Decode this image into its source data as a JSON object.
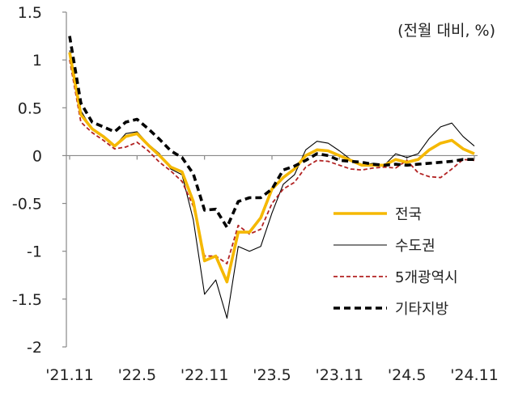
{
  "chart_data": {
    "type": "line",
    "title": "",
    "unit_note": "(전월 대비, %)",
    "xlabel": "",
    "ylabel": "",
    "ylim": [
      -2,
      1.5
    ],
    "y_ticks": [
      1.5,
      1,
      0.5,
      0,
      -0.5,
      -1,
      -1.5,
      -2
    ],
    "y_tick_labels": [
      "1.5",
      "1",
      "0.5",
      "0",
      "-0.5",
      "-1",
      "-1.5",
      "-2"
    ],
    "x_tick_labels": [
      "'21.11",
      "'22.5",
      "'22.11",
      "'23.5",
      "'23.11",
      "'24.5",
      "'24.11"
    ],
    "x_tick_index": [
      0,
      6,
      12,
      18,
      24,
      30,
      36
    ],
    "grid": false,
    "legend_position": "right",
    "months": [
      "'21.11",
      "'21.12",
      "'22.1",
      "'22.2",
      "'22.3",
      "'22.4",
      "'22.5",
      "'22.6",
      "'22.7",
      "'22.8",
      "'22.9",
      "'22.10",
      "'22.11",
      "'22.12",
      "'23.1",
      "'23.2",
      "'23.3",
      "'23.4",
      "'23.5",
      "'23.6",
      "'23.7",
      "'23.8",
      "'23.9",
      "'23.10",
      "'23.11",
      "'23.12",
      "'24.1",
      "'24.2",
      "'24.3",
      "'24.4",
      "'24.5",
      "'24.6",
      "'24.7",
      "'24.8",
      "'24.9",
      "'24.10",
      "'24.11"
    ],
    "series": [
      {
        "name": "전국",
        "color": "#f5b800",
        "style": "solid-thick",
        "values": [
          1.08,
          0.43,
          0.28,
          0.2,
          0.1,
          0.2,
          0.23,
          0.11,
          0.0,
          -0.12,
          -0.17,
          -0.48,
          -1.1,
          -1.05,
          -1.32,
          -0.8,
          -0.8,
          -0.65,
          -0.35,
          -0.23,
          -0.14,
          0.0,
          0.06,
          0.05,
          0.0,
          -0.05,
          -0.1,
          -0.1,
          -0.1,
          -0.04,
          -0.07,
          -0.04,
          0.06,
          0.13,
          0.16,
          0.07,
          0.02
        ]
      },
      {
        "name": "수도권",
        "color": "#000000",
        "style": "solid-thin",
        "values": [
          1.1,
          0.47,
          0.27,
          0.19,
          0.1,
          0.23,
          0.25,
          0.12,
          0.02,
          -0.14,
          -0.2,
          -0.67,
          -1.45,
          -1.3,
          -1.7,
          -0.95,
          -1.0,
          -0.95,
          -0.6,
          -0.3,
          -0.2,
          0.06,
          0.15,
          0.13,
          0.05,
          -0.04,
          -0.1,
          -0.08,
          -0.1,
          0.02,
          -0.02,
          0.02,
          0.18,
          0.3,
          0.34,
          0.2,
          0.1
        ]
      },
      {
        "name": "5개광역시",
        "color": "#b22222",
        "style": "dashed",
        "values": [
          1.0,
          0.35,
          0.24,
          0.16,
          0.07,
          0.09,
          0.14,
          0.05,
          -0.07,
          -0.16,
          -0.27,
          -0.53,
          -1.05,
          -1.05,
          -1.13,
          -0.73,
          -0.82,
          -0.77,
          -0.5,
          -0.35,
          -0.28,
          -0.12,
          -0.05,
          -0.06,
          -0.1,
          -0.14,
          -0.15,
          -0.13,
          -0.12,
          -0.13,
          -0.05,
          -0.18,
          -0.22,
          -0.23,
          -0.14,
          -0.04,
          -0.05
        ]
      },
      {
        "name": "기타지방",
        "color": "#000000",
        "style": "dashed-thick",
        "values": [
          1.25,
          0.55,
          0.35,
          0.3,
          0.25,
          0.35,
          0.38,
          0.28,
          0.17,
          0.05,
          -0.02,
          -0.19,
          -0.57,
          -0.56,
          -0.75,
          -0.48,
          -0.44,
          -0.44,
          -0.35,
          -0.15,
          -0.11,
          -0.05,
          0.02,
          0.0,
          -0.05,
          -0.06,
          -0.07,
          -0.09,
          -0.1,
          -0.09,
          -0.1,
          -0.09,
          -0.08,
          -0.07,
          -0.06,
          -0.04,
          -0.04
        ]
      }
    ]
  }
}
